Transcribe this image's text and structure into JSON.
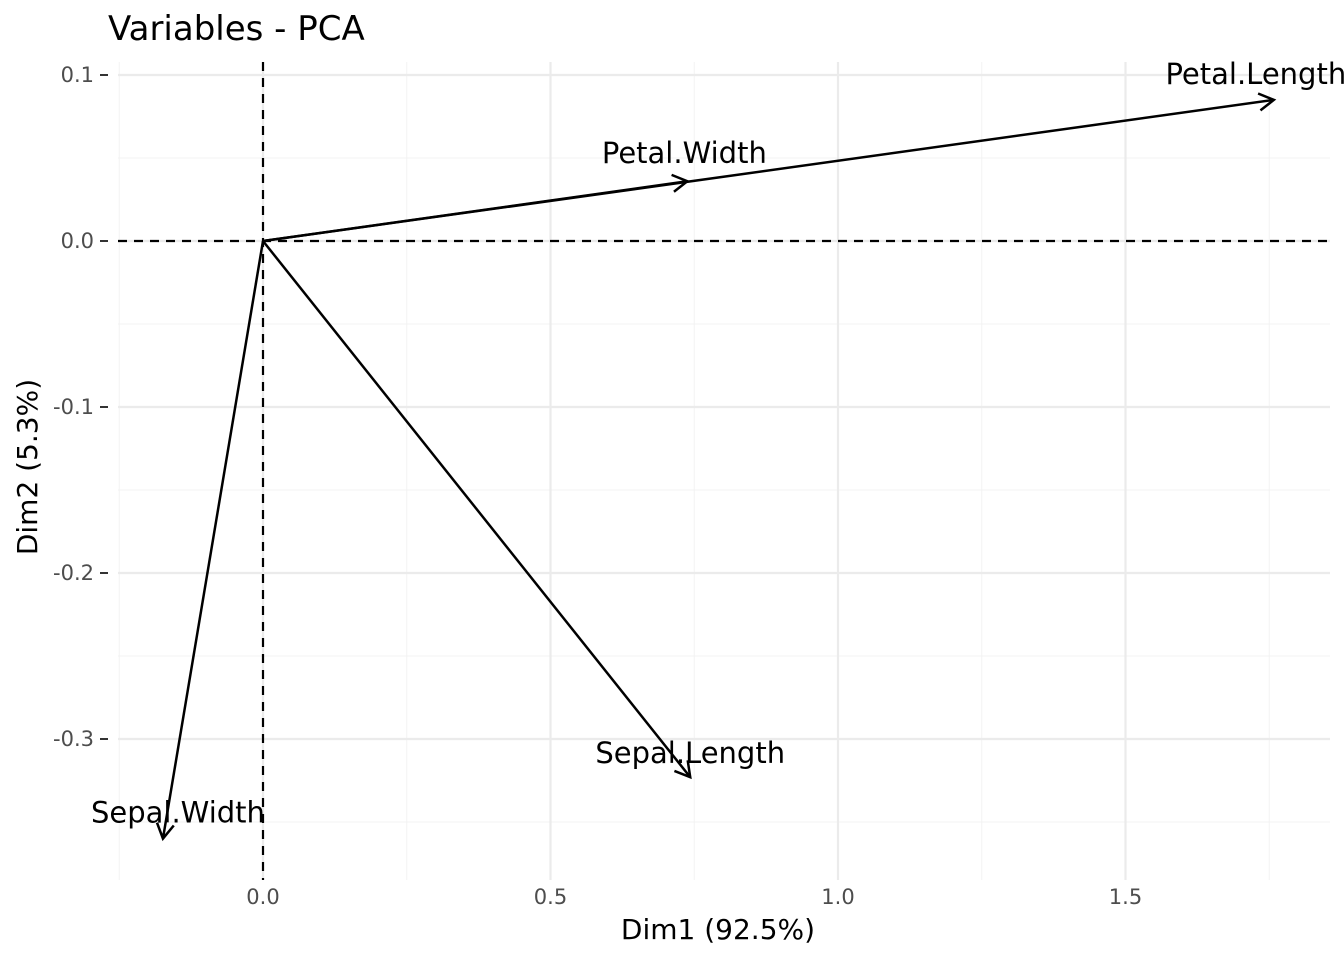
{
  "chart_data": {
    "type": "biplot-variables",
    "title": "Variables - PCA",
    "xlabel": "Dim1 (92.5%)",
    "ylabel": "Dim2 (5.3%)",
    "xlim": [
      -0.25,
      1.85
    ],
    "ylim": [
      -0.38,
      0.11
    ],
    "x_ticks": [
      {
        "value": 0.0,
        "label": "0.0"
      },
      {
        "value": 0.5,
        "label": "0.5"
      },
      {
        "value": 1.0,
        "label": "1.0"
      },
      {
        "value": 1.5,
        "label": "1.5"
      }
    ],
    "y_ticks": [
      {
        "value": 0.1,
        "label": "0.1"
      },
      {
        "value": 0.0,
        "label": "0.0"
      },
      {
        "value": -0.1,
        "label": "-0.1"
      },
      {
        "value": -0.2,
        "label": "-0.2"
      },
      {
        "value": -0.3,
        "label": "-0.3"
      }
    ],
    "x_minor": [
      -0.25,
      0.25,
      0.75,
      1.25,
      1.75
    ],
    "y_minor": [
      0.05,
      -0.05,
      -0.15,
      -0.25,
      -0.35
    ],
    "grid": true,
    "reference_lines": {
      "x": 0.0,
      "y": 0.0
    },
    "variables": [
      {
        "name": "Sepal.Length",
        "x": 0.743,
        "y": -0.323
      },
      {
        "name": "Sepal.Width",
        "x": -0.174,
        "y": -0.36
      },
      {
        "name": "Petal.Length",
        "x": 1.758,
        "y": 0.085
      },
      {
        "name": "Petal.Width",
        "x": 0.738,
        "y": 0.036
      }
    ]
  }
}
